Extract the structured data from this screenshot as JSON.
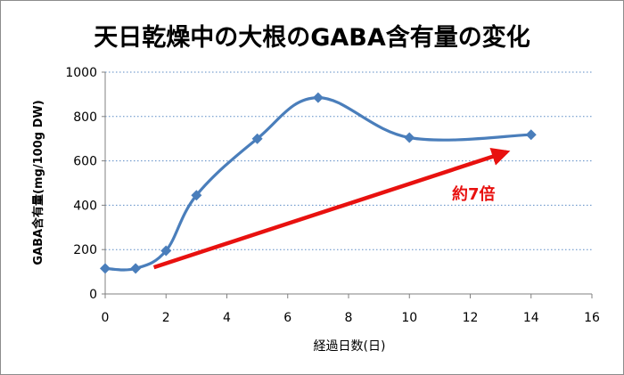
{
  "chart_data": {
    "type": "line",
    "title": "天日乾燥中の大根のGABA含有量の変化",
    "xlabel": "経過日数(日)",
    "ylabel": "GABA含有量(mg/100g DW)",
    "xlim": [
      0,
      16
    ],
    "ylim": [
      0,
      1000
    ],
    "x_ticks": [
      "0",
      "2",
      "4",
      "6",
      "8",
      "10",
      "12",
      "14",
      "16"
    ],
    "y_ticks": [
      "0",
      "200",
      "400",
      "600",
      "800",
      "1000"
    ],
    "grid": "horizontal-dotted",
    "legend": "none",
    "series": [
      {
        "x": [
          0,
          1,
          2,
          3,
          5,
          7,
          10,
          14
        ],
        "values": [
          115,
          115,
          195,
          445,
          700,
          885,
          705,
          718
        ],
        "color": "#4a7ebb",
        "marker": "diamond",
        "smooth": true
      }
    ],
    "annotation": {
      "text": "約7倍",
      "color": "#e8110f",
      "arrow_from": [
        1.6,
        120
      ],
      "arrow_to": [
        13.2,
        640
      ]
    }
  }
}
